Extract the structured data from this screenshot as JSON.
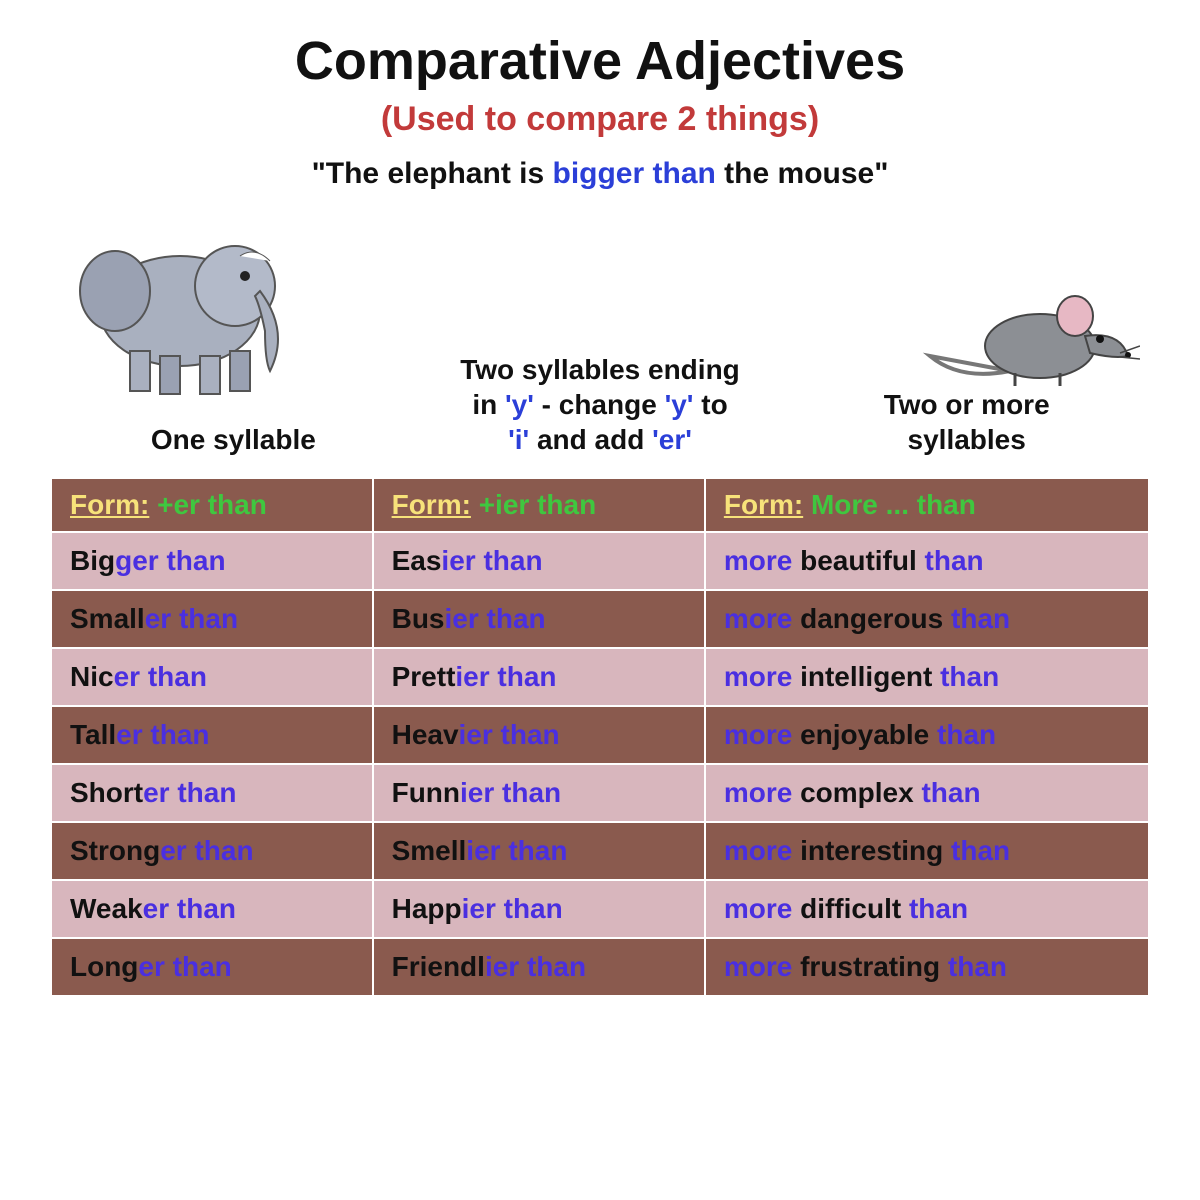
{
  "title": "Comparative Adjectives",
  "subtitle_text": "(Used to compare 2 things)",
  "subtitle_color": "#c23a3a",
  "example": {
    "pre": "\"The elephant is ",
    "highlight": "bigger than",
    "post": " the mouse\""
  },
  "columns": [
    {
      "header_plain": "One syllable",
      "header_html_parts": [
        {
          "t": "One syllable",
          "c": false
        }
      ],
      "form_label": "Form:",
      "form_rule": "+er than"
    },
    {
      "header_plain": "Two syllables ending in 'y' - change 'y' to 'i' and add 'er'",
      "header_html_parts": [
        {
          "t": "Two syllables ending",
          "c": false
        },
        {
          "br": true
        },
        {
          "t": "in ",
          "c": false
        },
        {
          "t": "'y'",
          "c": true
        },
        {
          "t": " - change ",
          "c": false
        },
        {
          "t": "'y'",
          "c": true
        },
        {
          "t": " to",
          "c": false
        },
        {
          "br": true
        },
        {
          "t": "'i'",
          "c": true
        },
        {
          "t": " and add ",
          "c": false
        },
        {
          "t": "'er'",
          "c": true
        }
      ],
      "form_label": "Form:",
      "form_rule": "+ier than"
    },
    {
      "header_plain": "Two or more syllables",
      "header_html_parts": [
        {
          "t": "Two or more",
          "c": false
        },
        {
          "br": true
        },
        {
          "t": "syllables",
          "c": false
        }
      ],
      "form_label": "Form:",
      "form_rule": "More ... than"
    }
  ],
  "rows": [
    {
      "shade": "light",
      "c1": {
        "base": "Big",
        "suf": "ger than"
      },
      "c2": {
        "base": "Eas",
        "suf": "ier than"
      },
      "c3": {
        "more": "more",
        "word": "beautiful",
        "than": "than"
      }
    },
    {
      "shade": "dark",
      "c1": {
        "base": "Small",
        "suf": "er than"
      },
      "c2": {
        "base": "Bus",
        "suf": "ier than"
      },
      "c3": {
        "more": "more",
        "word": "dangerous",
        "than": "than"
      }
    },
    {
      "shade": "light",
      "c1": {
        "base": "Nic",
        "suf": "er than"
      },
      "c2": {
        "base": "Prett",
        "suf": "ier than"
      },
      "c3": {
        "more": "more",
        "word": "intelligent",
        "than": "than"
      }
    },
    {
      "shade": "dark",
      "c1": {
        "base": "Tall",
        "suf": "er than"
      },
      "c2": {
        "base": "Heav",
        "suf": "ier than"
      },
      "c3": {
        "more": "more",
        "word": "enjoyable",
        "than": "than"
      }
    },
    {
      "shade": "light",
      "c1": {
        "base": "Short",
        "suf": "er than"
      },
      "c2": {
        "base": "Funn",
        "suf": "ier than"
      },
      "c3": {
        "more": "more",
        "word": "complex",
        "than": "than"
      }
    },
    {
      "shade": "dark",
      "c1": {
        "base": "Strong",
        "suf": "er than"
      },
      "c2": {
        "base": "Smell",
        "suf": "ier than"
      },
      "c3": {
        "more": "more",
        "word": "interesting",
        "than": "than"
      }
    },
    {
      "shade": "light",
      "c1": {
        "base": "Weak",
        "suf": "er than"
      },
      "c2": {
        "base": "Happ",
        "suf": "ier than"
      },
      "c3": {
        "more": "more",
        "word": "difficult",
        "than": "than"
      }
    },
    {
      "shade": "dark",
      "c1": {
        "base": "Long",
        "suf": "er than"
      },
      "c2": {
        "base": "Friendl",
        "suf": "ier than"
      },
      "c3": {
        "more": "more",
        "word": "frustrating",
        "than": "than"
      }
    }
  ],
  "colors": {
    "row_light": "#d8b6bd",
    "row_dark": "#8a5a4e",
    "form_label": "#f7e27a",
    "form_rule": "#3fc73f",
    "base_text": "#111111",
    "suffix_text": "#4a2fe0"
  }
}
